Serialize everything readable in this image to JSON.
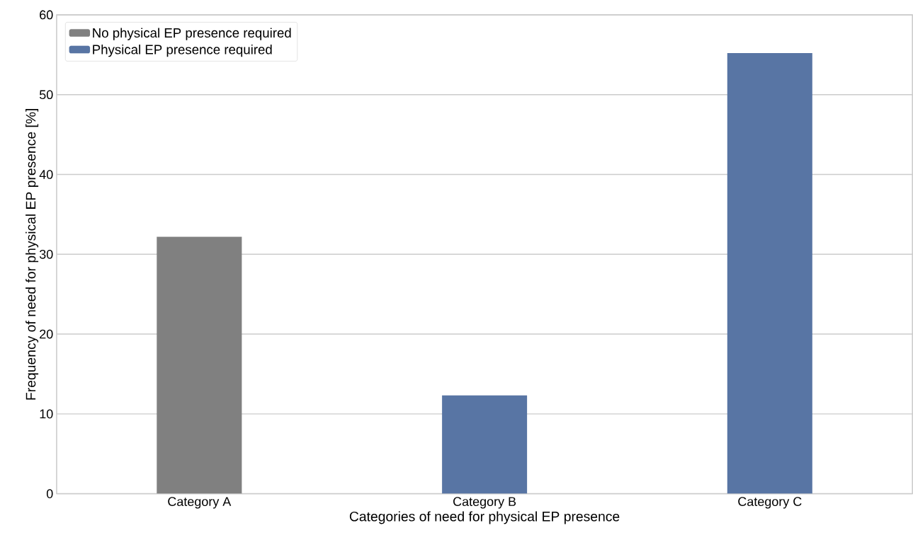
{
  "chart_data": {
    "type": "bar",
    "xlabel": "Categories of need for physical EP presence",
    "ylabel": "Frequency of need for physical EP presence [%]",
    "categories": [
      "Category A",
      "Category B",
      "Category C"
    ],
    "series": [
      {
        "name": "No physical EP presence required",
        "color": "#808080",
        "values": [
          32.2,
          null,
          null
        ]
      },
      {
        "name": "Physical EP presence required",
        "color": "#5875a4",
        "values": [
          null,
          12.3,
          55.2
        ]
      }
    ],
    "ylim": [
      0,
      60
    ],
    "yticks": [
      0,
      10,
      20,
      30,
      40,
      50,
      60
    ],
    "grid": "y",
    "legend": "top left"
  }
}
